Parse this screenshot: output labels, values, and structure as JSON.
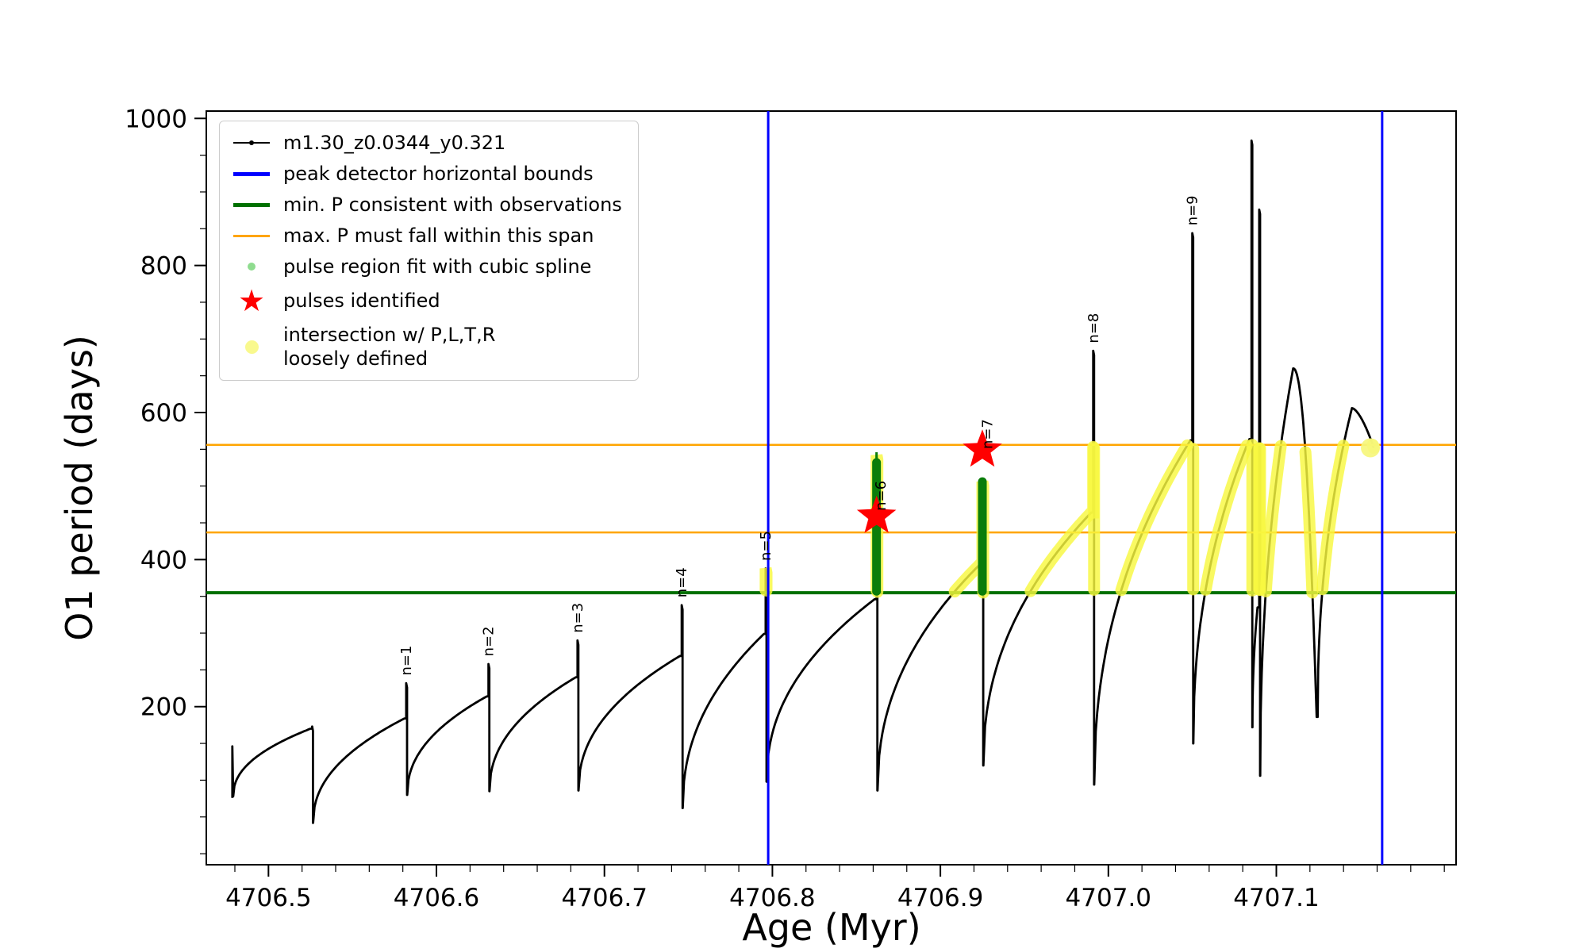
{
  "legend": {
    "items": [
      {
        "label": "m1.30_z0.0344_y0.321",
        "marker": "line+dot",
        "color": "#000000"
      },
      {
        "label": "peak detector horizontal bounds",
        "marker": "line",
        "color": "#0000ff"
      },
      {
        "label": "min. P consistent with observations",
        "marker": "line",
        "color": "#007000"
      },
      {
        "label": "max. P must fall within this span",
        "marker": "line",
        "color": "#ffa500"
      },
      {
        "label": "pulse region fit with cubic spline",
        "marker": "dot",
        "color": "#8fdc8f"
      },
      {
        "label": "pulses identified",
        "marker": "star",
        "color": "#ff0000"
      },
      {
        "label": "intersection w/ P,L,T,R\nloosely defined",
        "marker": "dot-large",
        "color": "#f8f87a"
      }
    ]
  },
  "chart_data": {
    "type": "line",
    "title": "",
    "xlabel": "Age (Myr)",
    "ylabel": "O1 period (days)",
    "xlim": [
      4706.463,
      4707.207
    ],
    "ylim": [
      -15,
      1010
    ],
    "xticks": [
      4706.5,
      4706.6,
      4706.7,
      4706.8,
      4706.9,
      4707.0,
      4707.1
    ],
    "xtick_labels": [
      "4706.5",
      "4706.6",
      "4706.7",
      "4706.8",
      "4706.9",
      "4707.0",
      "4707.1"
    ],
    "yticks": [
      200,
      400,
      600,
      800,
      1000
    ],
    "ytick_labels": [
      "200",
      "400",
      "600",
      "800",
      "1000"
    ],
    "x_minor_step": 0.02,
    "y_minor_step": 50,
    "legend_position": "upper left",
    "series": [
      {
        "name": "m1.30_z0.0344_y0.321",
        "color": "#000000",
        "style": "line+dots",
        "lead_in": [
          [
            4706.4785,
            76
          ],
          [
            4706.4785,
            146
          ]
        ],
        "pulse_cycles": [
          {
            "x_start": 4706.479,
            "y_start": 78,
            "x_peak": 4706.525,
            "y_peak": 170,
            "x_spike": 4706.526,
            "spike_top": 173,
            "drop_to": 42
          },
          {
            "x_start": 4706.5266,
            "y_start": 42,
            "x_peak": 4706.581,
            "y_peak": 184,
            "x_spike": 4706.582,
            "spike_top": 232,
            "drop_to": 80
          },
          {
            "x_start": 4706.5826,
            "y_start": 80,
            "x_peak": 4706.63,
            "y_peak": 214,
            "x_spike": 4706.631,
            "spike_top": 258,
            "drop_to": 85
          },
          {
            "x_start": 4706.6316,
            "y_start": 85,
            "x_peak": 4706.683,
            "y_peak": 240,
            "x_spike": 4706.684,
            "spike_top": 290,
            "drop_to": 86
          },
          {
            "x_start": 4706.6846,
            "y_start": 86,
            "x_peak": 4706.745,
            "y_peak": 269,
            "x_spike": 4706.746,
            "spike_top": 338,
            "drop_to": 62
          },
          {
            "x_start": 4706.7466,
            "y_start": 62,
            "x_peak": 4706.795,
            "y_peak": 299,
            "x_spike": 4706.796,
            "spike_top": 388,
            "drop_to": 98
          },
          {
            "x_start": 4706.7966,
            "y_start": 98,
            "x_peak": 4706.8608,
            "y_peak": 346,
            "x_spike": 4706.862,
            "spike_top": 542,
            "drop_to": 86
          },
          {
            "x_start": 4706.8626,
            "y_start": 86,
            "x_peak": 4706.9238,
            "y_peak": 394,
            "x_spike": 4706.925,
            "spike_top": 506,
            "drop_to": 120
          },
          {
            "x_start": 4706.9256,
            "y_start": 120,
            "x_peak": 4706.9898,
            "y_peak": 464,
            "x_spike": 4706.991,
            "spike_top": 684,
            "drop_to": 94
          },
          {
            "x_start": 4706.9916,
            "y_start": 94,
            "x_peak": 4707.0488,
            "y_peak": 562,
            "x_spike": 4707.05,
            "spike_top": 844,
            "drop_to": 150
          },
          {
            "x_start": 4707.0506,
            "y_start": 150,
            "x_peak": 4707.084,
            "y_peak": 564,
            "x_spike": 4707.0852,
            "spike_top": 970,
            "drop_to": 172
          },
          {
            "x_start": 4707.0858,
            "y_start": 172,
            "x_peak": 4707.0888,
            "y_peak": 335,
            "x_spike": 4707.0898,
            "spike_top": 876,
            "drop_to": 106
          },
          {
            "x_start": 4707.0904,
            "y_start": 106,
            "x_peak": 4707.11,
            "y_peak": 660,
            "fall": [
              4707.124,
              186,
              2.2
            ]
          },
          {
            "x_start": 4707.1246,
            "y_start": 186,
            "x_peak": 4707.145,
            "y_peak": 606,
            "fall": [
              4707.158,
              552,
              1.6
            ]
          }
        ]
      }
    ],
    "vlines": {
      "label": "peak detector horizontal bounds",
      "color": "#0000ff",
      "xs": [
        4706.7975,
        4707.163
      ]
    },
    "min_p_line": {
      "label": "min. P consistent with observations",
      "color": "#007000",
      "y": 355
    },
    "orange_span": {
      "label": "max. P must fall within this span",
      "color": "#ffa500",
      "ys": [
        437,
        556
      ]
    },
    "pulse_fit_columns": {
      "label": "pulse region fit with cubic spline",
      "color": "#0a7d0a",
      "columns": [
        {
          "x": 4706.862,
          "y_bottom": 357,
          "y_top": 532,
          "tip_top": 546
        },
        {
          "x": 4706.925,
          "y_bottom": 357,
          "y_top": 506
        }
      ]
    },
    "pulses": {
      "label": "pulses identified",
      "color": "#ff0000",
      "points": [
        [
          4706.862,
          459
        ],
        [
          4706.925,
          549
        ]
      ]
    },
    "intersection_band": {
      "label": "intersection w/ P,L,T,R loosely defined",
      "color": "#f8f840",
      "xmin": 4706.795,
      "ymin": 355,
      "ymax": 556
    },
    "intersection_end_marker": {
      "x": 4707.156,
      "y": 552,
      "color": "#f6f67c"
    },
    "pulse_labels": [
      {
        "text": "n=1",
        "x": 4706.5825,
        "y": 238
      },
      {
        "text": "n=2",
        "x": 4706.6315,
        "y": 264
      },
      {
        "text": "n=3",
        "x": 4706.6845,
        "y": 296
      },
      {
        "text": "n=4",
        "x": 4706.7465,
        "y": 344
      },
      {
        "text": "n=5",
        "x": 4706.7965,
        "y": 394
      },
      {
        "text": "n=6",
        "x": 4706.865,
        "y": 462
      },
      {
        "text": "n=7",
        "x": 4706.9285,
        "y": 546
      },
      {
        "text": "n=8",
        "x": 4706.9915,
        "y": 690
      },
      {
        "text": "n=9",
        "x": 4707.0505,
        "y": 850
      }
    ]
  }
}
